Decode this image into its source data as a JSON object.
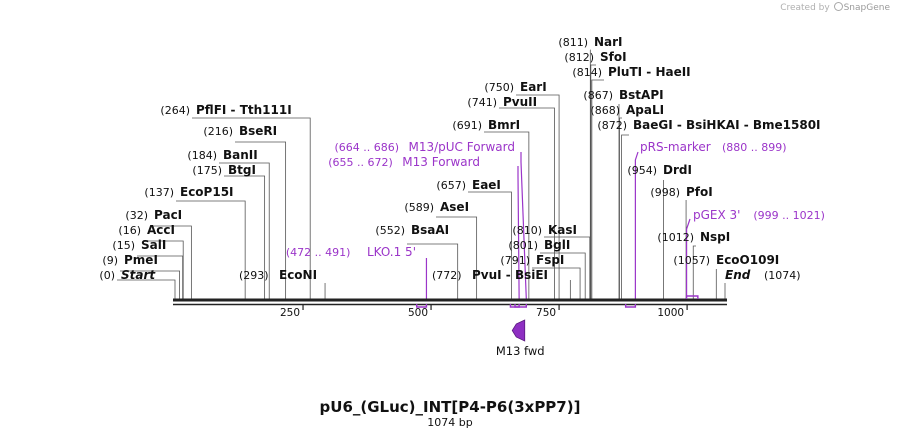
{
  "credit": {
    "prefix": "Created by",
    "brand": "SnapGene"
  },
  "map": {
    "name": "pU6_(GLuc)_INT[P4-P6(3xPP7)]",
    "length_label": "1074 bp",
    "length": 1074,
    "ticks": [
      {
        "pos": 250,
        "label": "250"
      },
      {
        "pos": 500,
        "label": "500"
      },
      {
        "pos": 750,
        "label": "750"
      },
      {
        "pos": 1000,
        "label": "1000"
      }
    ],
    "sites": [
      {
        "id": "start",
        "pos": 0,
        "num": "(0)",
        "name": "Start",
        "italic": true
      },
      {
        "id": "pmei",
        "pos": 9,
        "num": "(9)",
        "name": "PmeI"
      },
      {
        "id": "sali",
        "pos": 15,
        "num": "(15)",
        "name": "SalI"
      },
      {
        "id": "acci",
        "pos": 16,
        "num": "(16)",
        "name": "AccI"
      },
      {
        "id": "paci",
        "pos": 32,
        "num": "(32)",
        "name": "PacI"
      },
      {
        "id": "ecop15i",
        "pos": 137,
        "num": "(137)",
        "name": "EcoP15I"
      },
      {
        "id": "btgi",
        "pos": 175,
        "num": "(175)",
        "name": "BtgI"
      },
      {
        "id": "banii",
        "pos": 184,
        "num": "(184)",
        "name": "BanII"
      },
      {
        "id": "beseri",
        "pos": 216,
        "num": "(216)",
        "name": "BseRI"
      },
      {
        "id": "pflfi",
        "pos": 264,
        "num": "(264)",
        "name": "PflFI  - Tth111I"
      },
      {
        "id": "econi",
        "pos": 293,
        "num": "(293)",
        "name": "EcoNI",
        "numFirst": true
      },
      {
        "id": "bsaai",
        "pos": 552,
        "num": "(552)",
        "name": "BsaAI"
      },
      {
        "id": "asei",
        "pos": 589,
        "num": "(589)",
        "name": "AseI"
      },
      {
        "id": "eaei",
        "pos": 657,
        "num": "(657)",
        "name": "EaeI"
      },
      {
        "id": "bmri",
        "pos": 691,
        "num": "(691)",
        "name": "BmrI"
      },
      {
        "id": "pvuii",
        "pos": 741,
        "num": "(741)",
        "name": "PvuII"
      },
      {
        "id": "eari",
        "pos": 750,
        "num": "(750)",
        "name": "EarI"
      },
      {
        "id": "pvui",
        "pos": 772,
        "num": "(772)",
        "name": "PvuI  - BsiEI",
        "numFirst": true
      },
      {
        "id": "fspi",
        "pos": 791,
        "num": "(791)",
        "name": "FspI"
      },
      {
        "id": "bgli",
        "pos": 801,
        "num": "(801)",
        "name": "BglI"
      },
      {
        "id": "kasi",
        "pos": 810,
        "num": "(810)",
        "name": "KasI"
      },
      {
        "id": "nari",
        "pos": 811,
        "num": "(811)",
        "name": "NarI"
      },
      {
        "id": "sfoi",
        "pos": 812,
        "num": "(812)",
        "name": "SfoI"
      },
      {
        "id": "pluti",
        "pos": 814,
        "num": "(814)",
        "name": "PluTI  - HaeII"
      },
      {
        "id": "bstapi",
        "pos": 867,
        "num": "(867)",
        "name": "BstAPI"
      },
      {
        "id": "apali",
        "pos": 868,
        "num": "(868)",
        "name": "ApaLI"
      },
      {
        "id": "baegi",
        "pos": 872,
        "num": "(872)",
        "name": "BaeGI  - BsiHKAI  - Bme1580I"
      },
      {
        "id": "drdi",
        "pos": 954,
        "num": "(954)",
        "name": "DrdI"
      },
      {
        "id": "pfoi",
        "pos": 998,
        "num": "(998)",
        "name": "PfoI"
      },
      {
        "id": "nspi",
        "pos": 1012,
        "num": "(1012)",
        "name": "NspI"
      },
      {
        "id": "ecoo109i",
        "pos": 1057,
        "num": "(1057)",
        "name": "EcoO109I"
      },
      {
        "id": "end",
        "pos": 1074,
        "num": "(1074)",
        "name": "End",
        "italic": true
      }
    ],
    "primers": [
      {
        "id": "lko1",
        "start": 472,
        "end": 491,
        "name": "LKO.1 5'",
        "range": "(472 .. 491)",
        "rangeFirst": true
      },
      {
        "id": "m13",
        "start": 655,
        "end": 672,
        "name": "M13 Forward",
        "range": "(655 .. 672)",
        "rangeFirst": true
      },
      {
        "id": "m13puc",
        "start": 664,
        "end": 686,
        "name": "M13/pUC Forward",
        "range": "(664 .. 686)",
        "rangeFirst": true
      },
      {
        "id": "prs",
        "start": 880,
        "end": 899,
        "name": "pRS-marker",
        "range": "(880 .. 899)",
        "rangeFirst": false
      },
      {
        "id": "pgex",
        "start": 999,
        "end": 1021,
        "name": "pGEX 3'",
        "range": "(999 .. 1021)",
        "rangeFirst": false
      }
    ],
    "features": [
      {
        "id": "m13fwd",
        "start": 672,
        "end": 688,
        "name": "M13 fwd"
      }
    ],
    "colors": {
      "primer": "#9b35c9",
      "feature": "#8e2fc2",
      "backbone": "#222222",
      "line": "#555555"
    }
  }
}
